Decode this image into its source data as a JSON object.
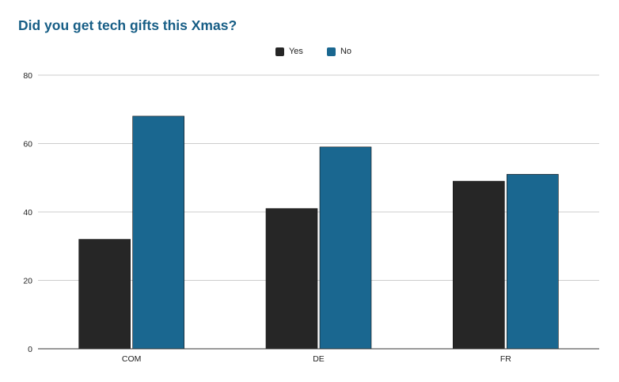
{
  "chart_data": {
    "type": "bar",
    "title": "Did you get tech gifts this Xmas?",
    "categories": [
      "COM",
      "DE",
      "FR"
    ],
    "series": [
      {
        "name": "Yes",
        "color": "#262626",
        "values": [
          32,
          41,
          49
        ]
      },
      {
        "name": "No",
        "color": "#1a6790",
        "values": [
          68,
          59,
          51
        ]
      }
    ],
    "ylim": [
      0,
      80
    ],
    "yticks": [
      0,
      20,
      40,
      60,
      80
    ],
    "grid": true,
    "legend_position": "top-center",
    "xlabel": "",
    "ylabel": ""
  }
}
